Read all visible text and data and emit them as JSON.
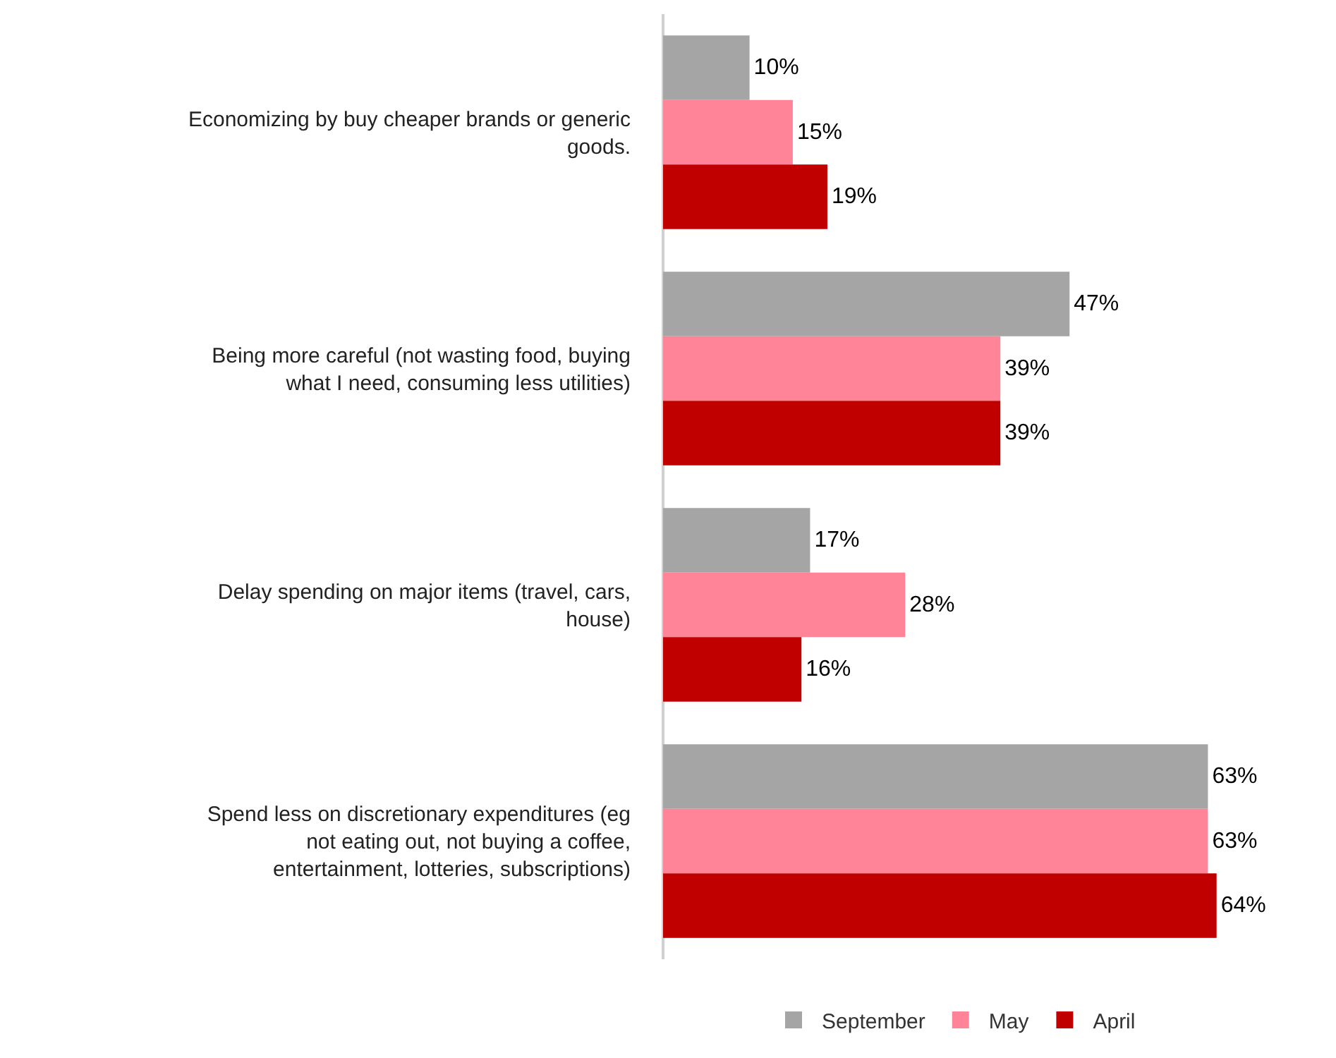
{
  "chart_data": {
    "type": "bar",
    "orientation": "horizontal",
    "categories": [
      "Economizing by buy cheaper brands or generic goods.",
      "Being more careful (not wasting food, buying what I need, consuming less utilities)",
      "Delay spending on major items (travel, cars, house)",
      "Spend less on discretionary expenditures (eg not eating out, not buying a coffee, entertainment, lotteries, subscriptions)"
    ],
    "series": [
      {
        "name": "September",
        "color": "#a5a5a5",
        "values": [
          10,
          47,
          17,
          63
        ],
        "value_labels": [
          "10%",
          "47%",
          "17%",
          "63%"
        ]
      },
      {
        "name": "May",
        "color": "#ff8497",
        "values": [
          15,
          39,
          28,
          63
        ],
        "value_labels": [
          "15%",
          "39%",
          "28%",
          "63%"
        ]
      },
      {
        "name": "April",
        "color": "#c00000",
        "values": [
          19,
          39,
          16,
          64
        ],
        "value_labels": [
          "19%",
          "39%",
          "16%",
          "64%"
        ]
      }
    ],
    "tick_labels": "y",
    "grid": false,
    "legend": "bottom"
  }
}
